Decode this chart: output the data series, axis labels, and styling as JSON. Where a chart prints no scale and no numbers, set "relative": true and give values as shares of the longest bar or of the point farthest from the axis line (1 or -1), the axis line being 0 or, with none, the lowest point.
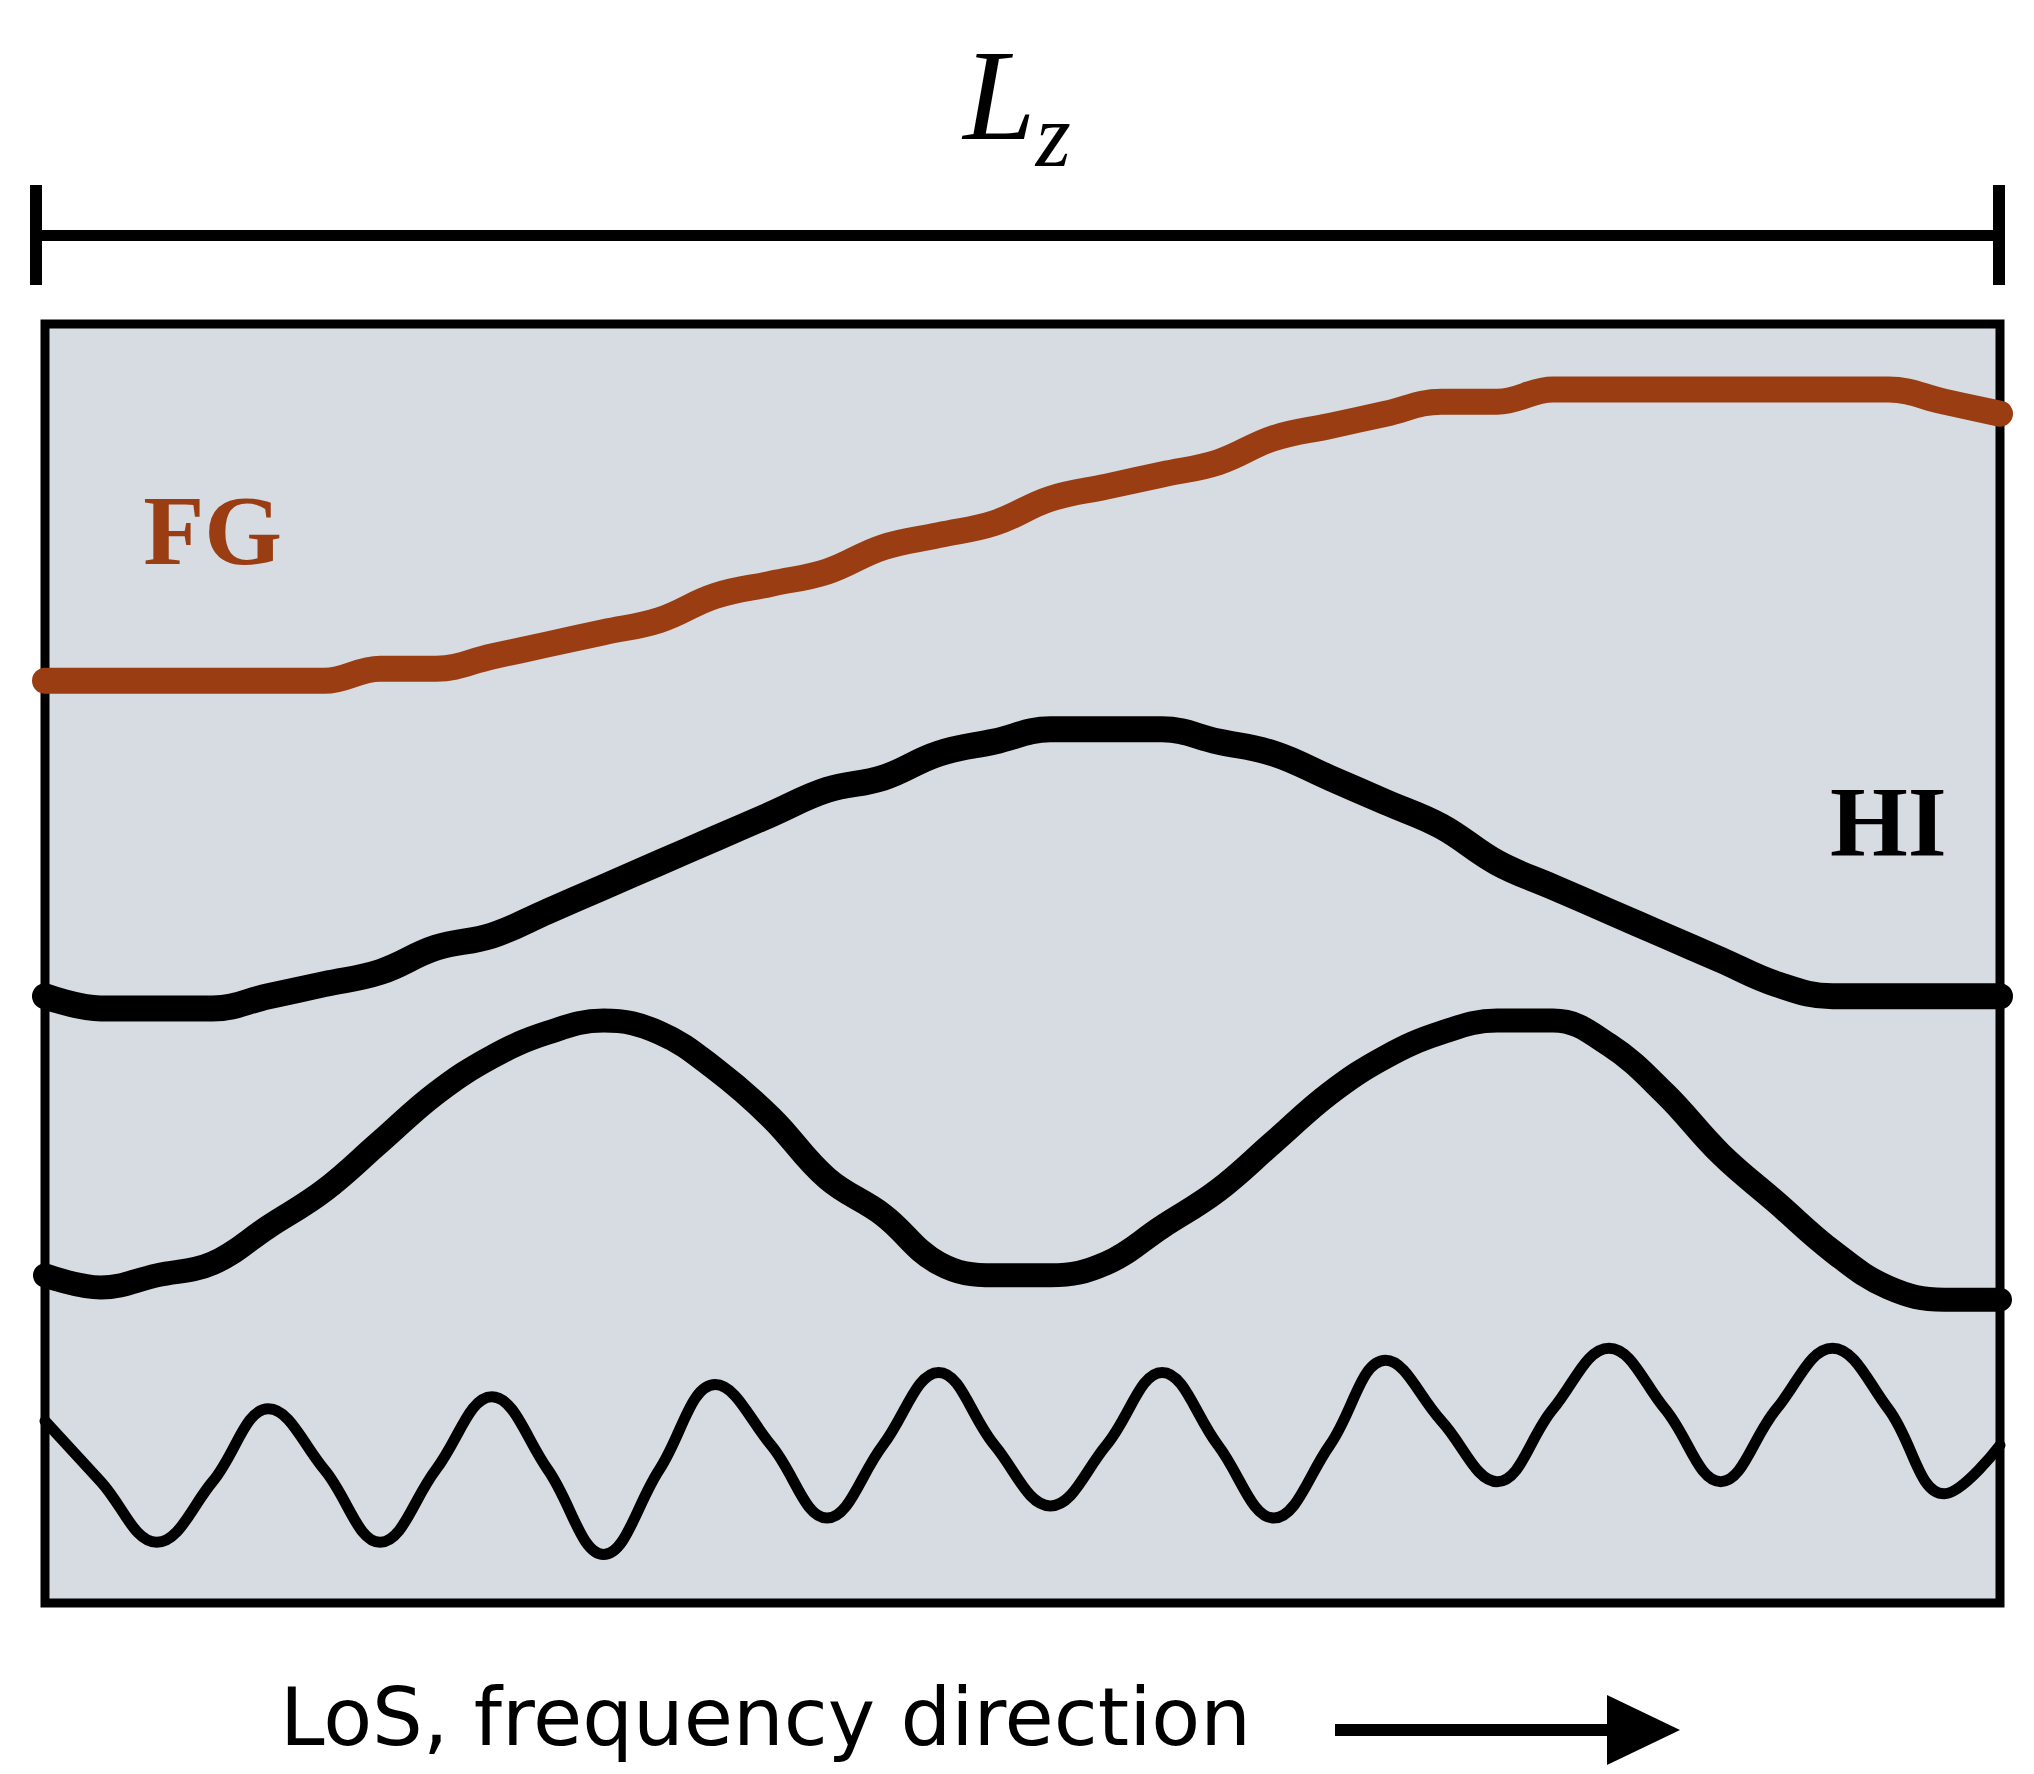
{
  "chart_data": {
    "type": "line",
    "title": "L$_{z}$",
    "xlabel": "LoS, frequency direction",
    "relative": true,
    "marker": "none",
    "line_style": "solid",
    "categories": [
      null,
      null,
      null,
      null,
      null,
      null,
      null,
      null,
      null,
      null,
      null,
      null,
      null,
      null,
      null,
      null,
      null,
      null,
      null,
      null,
      null,
      null,
      null,
      null,
      null,
      null,
      null,
      null,
      null,
      null,
      null,
      null,
      null,
      null,
      null,
      null
    ],
    "series": [
      {
        "name": "FG",
        "color": "#9b3d12",
        "values": [
          0.76,
          0.76,
          0.76,
          0.76,
          0.76,
          0.76,
          0.77,
          0.77,
          0.78,
          0.79,
          0.8,
          0.81,
          0.83,
          0.84,
          0.85,
          0.87,
          0.88,
          0.89,
          0.91,
          0.92,
          0.93,
          0.94,
          0.96,
          0.97,
          0.98,
          0.99,
          0.99,
          1.0,
          1.0,
          1.0,
          1.0,
          1.0,
          1.0,
          1.0,
          0.99,
          0.98
        ]
      },
      {
        "name": "HI",
        "color": "#000000",
        "values": [
          0.5,
          0.49,
          0.49,
          0.49,
          0.5,
          0.51,
          0.52,
          0.54,
          0.55,
          0.57,
          0.59,
          0.61,
          0.63,
          0.65,
          0.67,
          0.68,
          0.7,
          0.71,
          0.72,
          0.72,
          0.72,
          0.71,
          0.7,
          0.68,
          0.66,
          0.64,
          0.61,
          0.59,
          0.57,
          0.55,
          0.53,
          0.51,
          0.5,
          0.5,
          0.5,
          0.5
        ]
      },
      {
        "color": "#000000",
        "values": [
          0.27,
          0.26,
          0.27,
          0.28,
          0.31,
          0.34,
          0.38,
          0.42,
          0.45,
          0.47,
          0.48,
          0.47,
          0.44,
          0.4,
          0.35,
          0.32,
          0.28,
          0.27,
          0.27,
          0.28,
          0.31,
          0.34,
          0.38,
          0.42,
          0.45,
          0.47,
          0.48,
          0.48,
          0.46,
          0.42,
          0.37,
          0.33,
          0.29,
          0.26,
          0.25,
          0.25
        ]
      },
      {
        "color": "#000000",
        "values": [
          0.15,
          0.1,
          0.05,
          0.1,
          0.16,
          0.11,
          0.05,
          0.11,
          0.17,
          0.11,
          0.04,
          0.11,
          0.18,
          0.13,
          0.07,
          0.13,
          0.19,
          0.13,
          0.08,
          0.13,
          0.19,
          0.13,
          0.07,
          0.13,
          0.2,
          0.15,
          0.1,
          0.16,
          0.21,
          0.16,
          0.1,
          0.16,
          0.21,
          0.16,
          0.09,
          0.13
        ]
      }
    ]
  }
}
